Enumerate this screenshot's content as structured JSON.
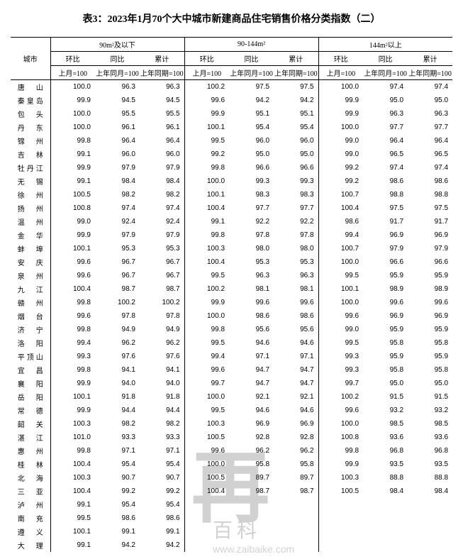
{
  "title": "表3：2023年1月70个大中城市新建商品住宅销售价格分类指数（二）",
  "header": {
    "city": "城市",
    "groups": [
      "90m²及以下",
      "90-144m²",
      "144m²以上"
    ],
    "sub": [
      "环比",
      "同比",
      "累计"
    ],
    "base": [
      "上月=100",
      "上年同月=100",
      "上年同期=100"
    ]
  },
  "watermark": {
    "logo": "再",
    "brand": "百科",
    "url": "www.zaibaike.com"
  },
  "rows": [
    {
      "city": "唐　山",
      "v": [
        "100.0",
        "96.3",
        "96.3",
        "100.2",
        "97.5",
        "97.5",
        "100.0",
        "97.4",
        "97.4"
      ]
    },
    {
      "city": "秦皇岛",
      "v": [
        "99.9",
        "94.5",
        "94.5",
        "99.6",
        "94.2",
        "94.2",
        "99.9",
        "95.0",
        "95.0"
      ]
    },
    {
      "city": "包　头",
      "v": [
        "100.0",
        "95.5",
        "95.5",
        "99.9",
        "95.1",
        "95.1",
        "99.9",
        "96.3",
        "96.3"
      ]
    },
    {
      "city": "丹　东",
      "v": [
        "100.0",
        "96.1",
        "96.1",
        "100.1",
        "95.4",
        "95.4",
        "100.0",
        "97.7",
        "97.7"
      ]
    },
    {
      "city": "锦　州",
      "v": [
        "99.8",
        "96.4",
        "96.4",
        "99.5",
        "96.0",
        "96.0",
        "99.0",
        "96.4",
        "96.4"
      ]
    },
    {
      "city": "吉　林",
      "v": [
        "99.1",
        "96.0",
        "96.0",
        "99.2",
        "95.0",
        "95.0",
        "99.0",
        "96.5",
        "96.5"
      ]
    },
    {
      "city": "牡丹江",
      "v": [
        "99.9",
        "97.9",
        "97.9",
        "99.8",
        "96.6",
        "96.6",
        "99.2",
        "97.4",
        "97.4"
      ]
    },
    {
      "city": "无　锡",
      "v": [
        "99.1",
        "98.4",
        "98.4",
        "100.0",
        "99.3",
        "99.3",
        "99.2",
        "98.6",
        "98.6"
      ]
    },
    {
      "city": "徐　州",
      "v": [
        "100.5",
        "98.2",
        "98.2",
        "100.1",
        "98.3",
        "98.3",
        "100.7",
        "98.8",
        "98.8"
      ]
    },
    {
      "city": "扬　州",
      "v": [
        "100.8",
        "97.4",
        "97.4",
        "100.4",
        "97.7",
        "97.7",
        "100.4",
        "97.5",
        "97.5"
      ]
    },
    {
      "city": "温　州",
      "v": [
        "99.0",
        "92.4",
        "92.4",
        "99.1",
        "92.2",
        "92.2",
        "98.6",
        "91.7",
        "91.7"
      ]
    },
    {
      "city": "金　华",
      "v": [
        "99.9",
        "97.9",
        "97.9",
        "99.8",
        "97.8",
        "97.8",
        "99.4",
        "96.9",
        "96.9"
      ]
    },
    {
      "city": "蚌　埠",
      "v": [
        "100.1",
        "95.3",
        "95.3",
        "100.3",
        "98.0",
        "98.0",
        "100.7",
        "97.9",
        "97.9"
      ]
    },
    {
      "city": "安　庆",
      "v": [
        "99.6",
        "96.7",
        "96.7",
        "100.4",
        "95.3",
        "95.3",
        "100.0",
        "96.6",
        "96.6"
      ]
    },
    {
      "city": "泉　州",
      "v": [
        "99.6",
        "96.7",
        "96.7",
        "99.5",
        "96.3",
        "96.3",
        "99.5",
        "95.9",
        "95.9"
      ]
    },
    {
      "city": "九　江",
      "v": [
        "100.4",
        "98.7",
        "98.7",
        "100.2",
        "98.1",
        "98.1",
        "100.1",
        "98.9",
        "98.9"
      ]
    },
    {
      "city": "赣　州",
      "v": [
        "99.8",
        "100.2",
        "100.2",
        "99.9",
        "99.6",
        "99.6",
        "100.0",
        "99.6",
        "99.6"
      ]
    },
    {
      "city": "烟　台",
      "v": [
        "99.6",
        "97.8",
        "97.8",
        "100.0",
        "98.6",
        "98.6",
        "99.6",
        "96.9",
        "96.9"
      ]
    },
    {
      "city": "济　宁",
      "v": [
        "99.8",
        "94.9",
        "94.9",
        "99.8",
        "95.6",
        "95.6",
        "99.0",
        "95.9",
        "95.9"
      ]
    },
    {
      "city": "洛　阳",
      "v": [
        "99.4",
        "96.2",
        "96.2",
        "99.5",
        "94.6",
        "94.6",
        "99.5",
        "95.8",
        "95.8"
      ]
    },
    {
      "city": "平顶山",
      "v": [
        "99.3",
        "97.6",
        "97.6",
        "99.4",
        "97.1",
        "97.1",
        "99.3",
        "95.9",
        "95.9"
      ]
    },
    {
      "city": "宜　昌",
      "v": [
        "99.8",
        "94.1",
        "94.1",
        "99.6",
        "94.7",
        "94.7",
        "99.3",
        "95.8",
        "95.8"
      ]
    },
    {
      "city": "襄　阳",
      "v": [
        "99.9",
        "94.0",
        "94.0",
        "99.7",
        "94.7",
        "94.7",
        "99.7",
        "95.0",
        "95.0"
      ]
    },
    {
      "city": "岳　阳",
      "v": [
        "100.1",
        "91.8",
        "91.8",
        "100.0",
        "92.1",
        "92.1",
        "100.2",
        "91.5",
        "91.5"
      ]
    },
    {
      "city": "常　德",
      "v": [
        "99.9",
        "94.4",
        "94.4",
        "99.5",
        "94.6",
        "94.6",
        "99.6",
        "93.2",
        "93.2"
      ]
    },
    {
      "city": "韶　关",
      "v": [
        "100.3",
        "98.2",
        "98.2",
        "100.3",
        "96.9",
        "96.9",
        "100.0",
        "98.5",
        "98.5"
      ]
    },
    {
      "city": "湛　江",
      "v": [
        "101.0",
        "93.3",
        "93.3",
        "100.5",
        "92.8",
        "92.8",
        "100.8",
        "93.6",
        "93.6"
      ]
    },
    {
      "city": "惠　州",
      "v": [
        "99.8",
        "97.1",
        "97.1",
        "99.6",
        "96.2",
        "96.2",
        "99.8",
        "96.8",
        "96.8"
      ]
    },
    {
      "city": "桂　林",
      "v": [
        "100.4",
        "95.4",
        "95.4",
        "100.0",
        "95.8",
        "95.8",
        "99.9",
        "93.5",
        "93.5"
      ]
    },
    {
      "city": "北　海",
      "v": [
        "100.3",
        "90.7",
        "90.7",
        "100.5",
        "89.7",
        "89.7",
        "100.3",
        "88.8",
        "88.8"
      ]
    },
    {
      "city": "三　亚",
      "v": [
        "100.4",
        "99.2",
        "99.2",
        "100.4",
        "98.7",
        "98.7",
        "100.5",
        "98.4",
        "98.4"
      ]
    },
    {
      "city": "泸　州",
      "v": [
        "99.1",
        "95.4",
        "95.4",
        "",
        "",
        "",
        "",
        "",
        ""
      ]
    },
    {
      "city": "南　充",
      "v": [
        "99.5",
        "98.6",
        "98.6",
        "",
        "",
        "",
        "",
        "",
        ""
      ]
    },
    {
      "city": "遵　义",
      "v": [
        "100.1",
        "99.1",
        "99.1",
        "",
        "",
        "",
        "",
        "",
        ""
      ]
    },
    {
      "city": "大　理",
      "v": [
        "99.1",
        "94.2",
        "94.2",
        "",
        "",
        "",
        "",
        "",
        ""
      ]
    }
  ]
}
